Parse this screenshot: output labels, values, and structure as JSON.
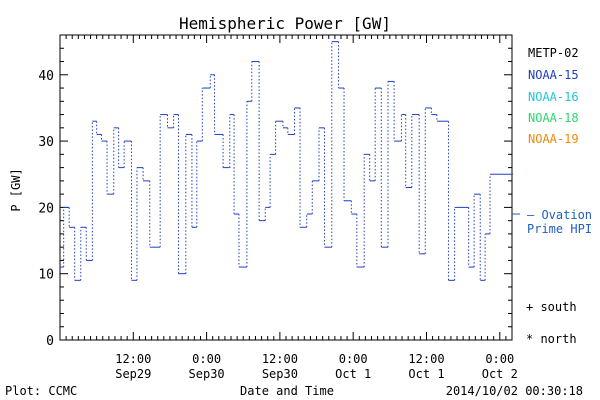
{
  "chart_data": {
    "type": "line",
    "title": "Hemispheric Power [GW]",
    "xlabel": "Date and Time",
    "ylabel": "P [GW]",
    "ylim": [
      0,
      46
    ],
    "xlim": [
      0,
      74
    ],
    "y_ticks": [
      0,
      10,
      20,
      30,
      40
    ],
    "x_ticks": [
      {
        "x": 12,
        "time": "12:00",
        "date": "Sep29"
      },
      {
        "x": 24,
        "time": "0:00",
        "date": "Sep30"
      },
      {
        "x": 36,
        "time": "12:00",
        "date": "Sep30"
      },
      {
        "x": 48,
        "time": "0:00",
        "date": "Oct 1"
      },
      {
        "x": 60,
        "time": "12:00",
        "date": "Oct 1"
      },
      {
        "x": 72,
        "time": "0:00",
        "date": "Oct 2"
      }
    ],
    "grid": false,
    "legend": [
      {
        "name": "METP-02",
        "color": "#000000"
      },
      {
        "name": "NOAA-15",
        "color": "#1f3fbf"
      },
      {
        "name": "NOAA-16",
        "color": "#22c4d8"
      },
      {
        "name": "NOAA-18",
        "color": "#2bd672"
      },
      {
        "name": "NOAA-19",
        "color": "#f08a0a"
      }
    ],
    "ovation_label_line1": "— Ovation",
    "ovation_label_line2": "Prime HPI",
    "ovation_value": 19,
    "ovation_color": "#1f5fbf",
    "marker_notes": [
      "+ south",
      "* north"
    ],
    "series": [
      {
        "name": "NOAA-15",
        "color": "#1f3fbf",
        "x": [
          0.0,
          0.6,
          1.5,
          2.4,
          3.4,
          4.3,
          5.3,
          6.0,
          6.8,
          7.7,
          8.8,
          9.6,
          10.5,
          11.7,
          12.6,
          13.6,
          14.7,
          16.4,
          17.6,
          18.6,
          19.4,
          20.6,
          21.6,
          22.4,
          23.3,
          24.6,
          25.3,
          26.7,
          27.8,
          28.5,
          29.3,
          30.6,
          31.4,
          32.6,
          33.6,
          34.4,
          35.3,
          36.5,
          37.3,
          38.4,
          39.3,
          40.4,
          41.3,
          42.4,
          43.3,
          44.5,
          45.6,
          46.5,
          47.7,
          48.6,
          49.8,
          50.7,
          51.6,
          52.6,
          53.7,
          54.7,
          55.9,
          56.6,
          57.6,
          58.8,
          59.8,
          60.8,
          61.7,
          62.8,
          63.6,
          64.6,
          66.9,
          67.8,
          68.8,
          69.6,
          70.4,
          71.2,
          71.8,
          72.6,
          73.5
        ],
        "y": [
          11,
          20,
          17,
          9,
          17,
          12,
          33,
          31,
          30,
          22,
          32,
          26,
          30,
          9,
          26,
          24,
          14,
          34,
          32,
          34,
          10,
          31,
          17,
          30,
          38,
          40,
          31,
          26,
          34,
          19,
          11,
          36,
          42,
          18,
          20,
          28,
          33,
          32,
          31,
          35,
          17,
          19,
          24,
          32,
          14,
          45,
          38,
          21,
          19,
          11,
          28,
          24,
          38,
          14,
          39,
          30,
          34,
          23,
          34,
          13,
          35,
          34,
          33,
          33,
          9,
          20,
          11,
          22,
          9,
          16,
          25,
          25,
          25,
          25,
          25
        ]
      }
    ]
  },
  "footer": {
    "left": "Plot: CCMC",
    "right": "2014/10/02 00:30:18"
  }
}
